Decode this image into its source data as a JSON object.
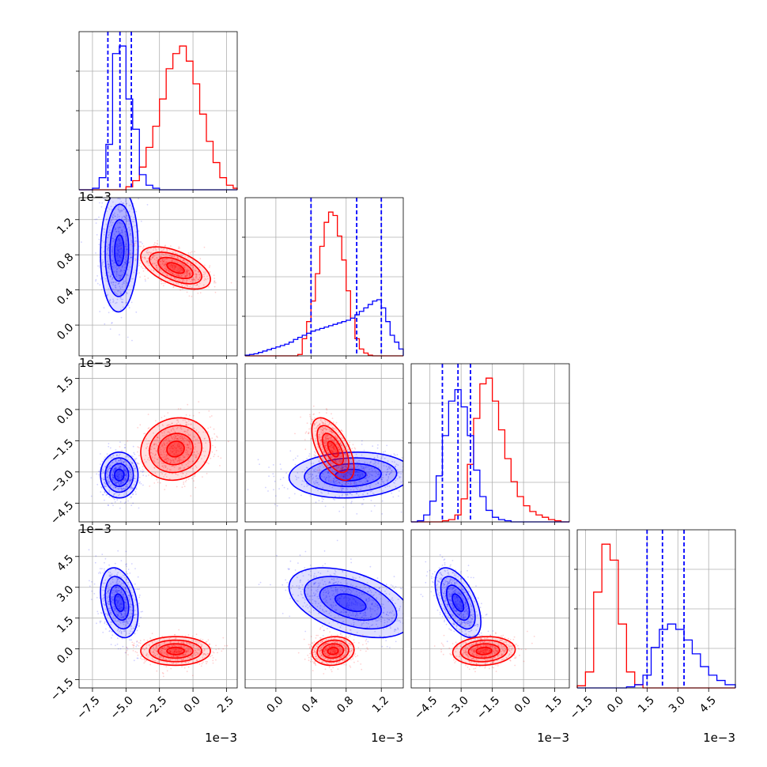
{
  "chart_data": {
    "type": "corner",
    "title": "",
    "colors": {
      "sample_a": "#0000ff",
      "sample_b": "#ff0000"
    },
    "parameters": [
      {
        "id": "p1",
        "range": [
          -8.5,
          3.3
        ],
        "ticks": [
          "−7.5",
          "−5.0",
          "−2.5",
          "0.0",
          "2.5"
        ],
        "tick_values": [
          -7.5,
          -5.0,
          -2.5,
          0.0,
          2.5
        ],
        "exponent": "1e−3"
      },
      {
        "id": "p2",
        "range": [
          -0.35,
          1.45
        ],
        "ticks": [
          "0.0",
          "0.4",
          "0.8",
          "1.2"
        ],
        "tick_values": [
          0.0,
          0.4,
          0.8,
          1.2
        ],
        "exponent": "1e−3"
      },
      {
        "id": "p3",
        "range": [
          -5.4,
          2.2
        ],
        "ticks": [
          "−4.5",
          "−3.0",
          "−1.5",
          "0.0",
          "1.5"
        ],
        "tick_values": [
          -4.5,
          -3.0,
          -1.5,
          0.0,
          1.5
        ],
        "exponent": "1e−3"
      },
      {
        "id": "p4",
        "range": [
          -1.9,
          5.8
        ],
        "ticks": [
          "−1.5",
          "0.0",
          "1.5",
          "3.0",
          "4.5"
        ],
        "tick_values": [
          -1.5,
          0.0,
          1.5,
          3.0,
          4.5
        ],
        "exponent": "1e−3"
      }
    ],
    "quantiles_sample_a": [
      [
        -6.35,
        -5.45,
        -4.6
      ],
      [
        0.4,
        0.92,
        1.2
      ],
      [
        -3.9,
        -3.15,
        -2.55
      ],
      [
        1.5,
        2.25,
        3.3
      ]
    ],
    "histograms": [
      {
        "edges": [
          -8.5,
          -8.0,
          -7.5,
          -7.0,
          -6.5,
          -6.0,
          -5.5,
          -5.0,
          -4.5,
          -4.0,
          -3.5,
          -3.0,
          -2.5,
          -2.0,
          -1.5,
          -1.0,
          -0.5,
          0.0,
          0.5,
          1.0,
          1.5,
          2.0,
          2.5,
          3.0,
          3.3
        ],
        "sample_a": [
          0,
          0,
          1,
          8,
          30,
          90,
          95,
          60,
          40,
          10,
          3,
          1,
          0,
          0,
          0,
          0,
          0,
          0,
          0,
          0,
          0,
          0,
          0,
          0
        ],
        "sample_b": [
          0,
          0,
          0,
          0,
          0,
          0,
          0,
          2,
          6,
          15,
          28,
          42,
          60,
          80,
          90,
          95,
          85,
          70,
          50,
          32,
          18,
          8,
          3,
          1
        ]
      },
      {
        "edges": [
          -0.35,
          -0.3,
          -0.25,
          -0.2,
          -0.15,
          -0.1,
          -0.05,
          0.0,
          0.05,
          0.1,
          0.15,
          0.2,
          0.25,
          0.3,
          0.35,
          0.4,
          0.45,
          0.5,
          0.55,
          0.6,
          0.65,
          0.7,
          0.75,
          0.8,
          0.85,
          0.9,
          0.95,
          1.0,
          1.05,
          1.1,
          1.15,
          1.2,
          1.25,
          1.3,
          1.35,
          1.4,
          1.45
        ],
        "sample_a": [
          1,
          2,
          3,
          5,
          7,
          9,
          11,
          13,
          15,
          17,
          20,
          24,
          27,
          30,
          33,
          36,
          38,
          40,
          42,
          44,
          46,
          48,
          50,
          52,
          55,
          60,
          65,
          70,
          75,
          80,
          82,
          70,
          50,
          30,
          20,
          10
        ],
        "sample_b": [
          0,
          0,
          0,
          0,
          0,
          0,
          0,
          0,
          0,
          0,
          0,
          0,
          2,
          25,
          50,
          80,
          120,
          160,
          195,
          210,
          205,
          175,
          140,
          95,
          55,
          25,
          10,
          4,
          1,
          0,
          0,
          0,
          0,
          0,
          0,
          0
        ]
      },
      {
        "edges": [
          -5.4,
          -5.1,
          -4.8,
          -4.5,
          -4.2,
          -3.9,
          -3.6,
          -3.3,
          -3.0,
          -2.7,
          -2.4,
          -2.1,
          -1.8,
          -1.5,
          -1.2,
          -0.9,
          -0.6,
          -0.3,
          0.0,
          0.3,
          0.6,
          0.9,
          1.2,
          1.5,
          1.8,
          2.2
        ],
        "sample_a": [
          0,
          1,
          6,
          18,
          40,
          75,
          105,
          115,
          100,
          75,
          45,
          22,
          10,
          4,
          2,
          1,
          0,
          0,
          0,
          0,
          0,
          0,
          0,
          0,
          0
        ],
        "sample_b": [
          0,
          0,
          0,
          0,
          0,
          1,
          2,
          6,
          20,
          50,
          90,
          120,
          125,
          105,
          80,
          55,
          35,
          22,
          14,
          9,
          6,
          4,
          2,
          1,
          0
        ]
      },
      {
        "edges": [
          -1.9,
          -1.5,
          -1.1,
          -0.7,
          -0.3,
          0.1,
          0.5,
          0.9,
          1.3,
          1.7,
          2.1,
          2.5,
          2.9,
          3.3,
          3.7,
          4.1,
          4.5,
          4.9,
          5.3,
          5.8
        ],
        "sample_a": [
          0,
          0,
          0,
          0,
          0,
          0,
          1,
          3,
          12,
          38,
          55,
          60,
          55,
          45,
          32,
          20,
          12,
          7,
          3
        ],
        "sample_b": [
          2,
          15,
          90,
          135,
          120,
          60,
          15,
          3,
          0,
          0,
          0,
          0,
          0,
          0,
          0,
          0,
          0,
          0,
          0
        ]
      }
    ],
    "clouds": {
      "sample_a": {
        "mean": [
          -5.5,
          0.85,
          -3.15,
          2.25
        ],
        "sd": [
          0.7,
          0.35,
          0.55,
          0.85
        ],
        "corr": [
          [
            1,
            0.05,
            0.0,
            -0.3
          ],
          [
            0.05,
            1,
            0.1,
            -0.45
          ],
          [
            0.0,
            0.1,
            1,
            -0.55
          ],
          [
            -0.3,
            -0.45,
            -0.55,
            1
          ]
        ]
      },
      "sample_b": {
        "mean": [
          -1.3,
          0.65,
          -1.9,
          -0.1
        ],
        "sd": [
          1.3,
          0.12,
          0.75,
          0.35
        ],
        "corr": [
          [
            1,
            -0.55,
            0.1,
            0.0
          ],
          [
            -0.55,
            1,
            -0.6,
            0.1
          ],
          [
            0.1,
            -0.6,
            1,
            0.1
          ],
          [
            0.0,
            0.1,
            0.1,
            1
          ]
        ]
      }
    }
  }
}
